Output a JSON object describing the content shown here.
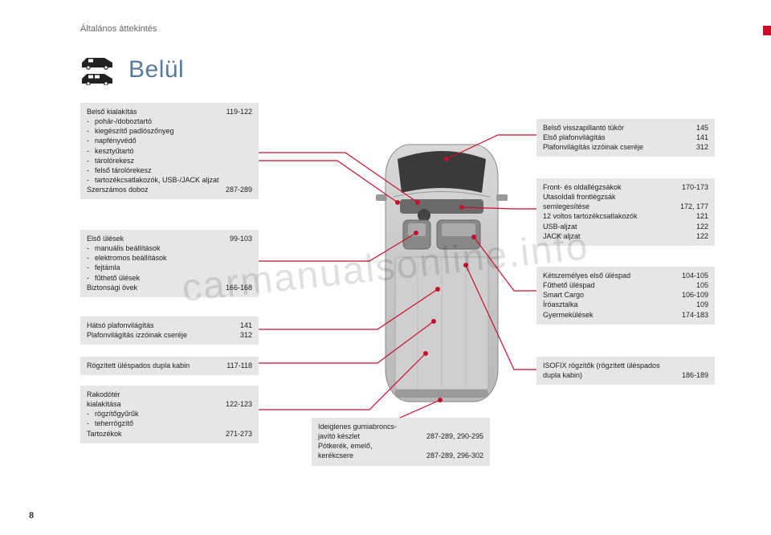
{
  "header": {
    "section": "Általános áttekintés"
  },
  "title": "Belül",
  "page_number": "8",
  "watermark": "carmanualsonline.info",
  "colors": {
    "accent": "#c8102e",
    "box_bg": "#e6e6e6",
    "title": "#5a7a9a",
    "text": "#222222"
  },
  "boxes": {
    "left1": {
      "rows": [
        {
          "label": "Belső kialakítás",
          "pages": "119-122"
        },
        {
          "sub": "pohár-/doboztartó"
        },
        {
          "sub": "kiegészítő padlószőnyeg"
        },
        {
          "sub": "napfényvédő"
        },
        {
          "sub": "kesztyűtartó"
        },
        {
          "sub": "tárolórekesz"
        },
        {
          "sub": "felső tárolórekesz"
        },
        {
          "sub": "tartozékcsatlakozók, USB-/JACK aljzat"
        },
        {
          "label": "Szerszámos doboz",
          "pages": "287-289"
        }
      ]
    },
    "left2": {
      "rows": [
        {
          "label": "Első ülések",
          "pages": "99-103"
        },
        {
          "sub": "manuális beállítások"
        },
        {
          "sub": "elektromos beállítások"
        },
        {
          "sub": "fejtámla"
        },
        {
          "sub": "fűthető ülések"
        },
        {
          "label": "Biztonsági övek",
          "pages": "166-168"
        }
      ]
    },
    "left3": {
      "rows": [
        {
          "label": "Hátsó plafonvilágítás",
          "pages": "141"
        },
        {
          "label": "Plafonvilágítás izzóinak cseréje",
          "pages": "312"
        }
      ]
    },
    "left4": {
      "rows": [
        {
          "label": "Rögzített üléspados dupla kabin",
          "pages": "117-118"
        }
      ]
    },
    "left5": {
      "rows": [
        {
          "label": "Rakodótér",
          "pages": ""
        },
        {
          "label": "  kialakítása",
          "pages": "122-123"
        },
        {
          "sub": "rögzítőgyűrűk"
        },
        {
          "sub": "teherrögzítő"
        },
        {
          "label": "Tartozékok",
          "pages": "271-273"
        }
      ]
    },
    "center": {
      "rows": [
        {
          "label": "Ideiglenes gumiabroncs-",
          "pages": ""
        },
        {
          "label": "  javító készlet",
          "pages": "287-289, 290-295"
        },
        {
          "label": "Pótkerék, emelő,",
          "pages": ""
        },
        {
          "label": "  kerékcsere",
          "pages": "287-289, 296-302"
        }
      ]
    },
    "right1": {
      "rows": [
        {
          "label": "Belső visszapillantó tükör",
          "pages": "145"
        },
        {
          "label": "Első plafonvilágítás",
          "pages": "141"
        },
        {
          "label": "Plafonvilágítás izzóinak cseréje",
          "pages": "312"
        }
      ]
    },
    "right2": {
      "rows": [
        {
          "label": "Front- és oldallégzsákok",
          "pages": "170-173"
        },
        {
          "label": "Utasoldali frontlégzsák",
          "pages": ""
        },
        {
          "label": "  semlegesítése",
          "pages": "172, 177"
        },
        {
          "label": "12 voltos tartozékcsatlakozók",
          "pages": "121"
        },
        {
          "label": "USB-aljzat",
          "pages": "122"
        },
        {
          "label": "JACK aljzat",
          "pages": "122"
        }
      ]
    },
    "right3": {
      "rows": [
        {
          "label": "Kétszemélyes első üléspad",
          "pages": "104-105"
        },
        {
          "label": "Fűthető üléspad",
          "pages": "105"
        },
        {
          "label": "Smart Cargo",
          "pages": "106-109"
        },
        {
          "label": "Íróasztalka",
          "pages": "109"
        },
        {
          "label": "Gyermekülések",
          "pages": "174-183"
        }
      ]
    },
    "right4": {
      "rows": [
        {
          "label": "ISOFIX rögzítők (rögzített üléspados",
          "pages": ""
        },
        {
          "label": "  dupla kabin)",
          "pages": "186-189"
        }
      ]
    }
  }
}
